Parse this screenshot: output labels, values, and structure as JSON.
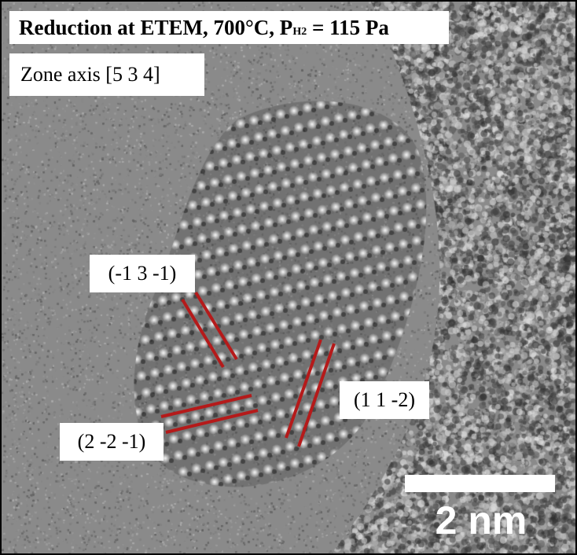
{
  "annotations": {
    "title_main": "Reduction at ETEM, 700°C, P",
    "title_subscript": "H2",
    "title_tail": " = 115 Pa",
    "zone_axis": "Zone axis [5 3 4]",
    "plane_labels": [
      "(-1 3 -1)",
      "(1 1 -2)",
      "(2 -2 -1)"
    ],
    "scale_bar_label": "2 nm"
  },
  "colors": {
    "background_gray": "#8a8a8a",
    "lattice_line": "#b51a1a",
    "scale_bar": "#ffffff"
  }
}
